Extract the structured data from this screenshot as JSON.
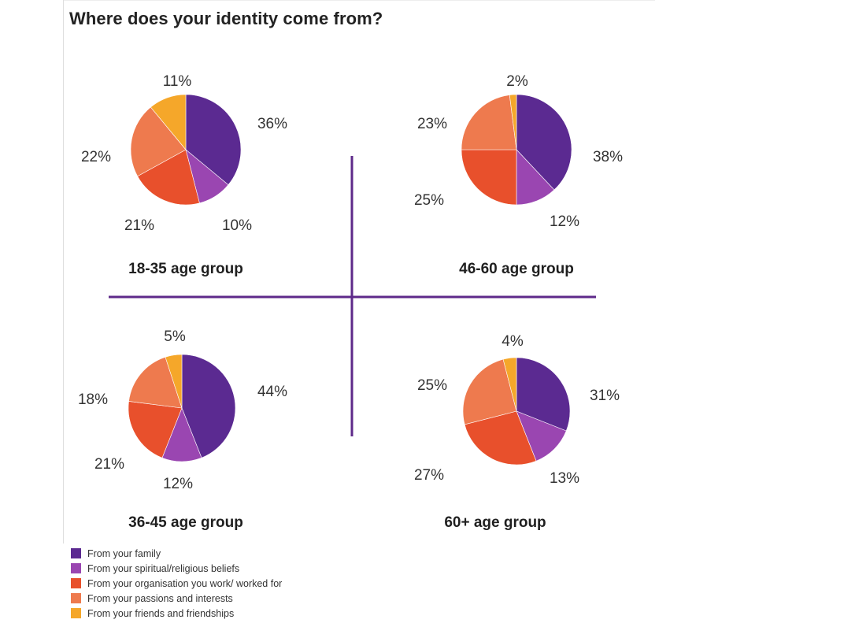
{
  "title": "Where does your identity come from?",
  "colors": {
    "family": "#5b2a91",
    "spiritual": "#9a46b1",
    "organisation": "#e8502c",
    "passions": "#ee7a4e",
    "friends": "#f5a72a",
    "divider": "#5e2a8a"
  },
  "legend": [
    {
      "key": "family",
      "label": "From your family"
    },
    {
      "key": "spiritual",
      "label": "From your spiritual/religious beliefs"
    },
    {
      "key": "organisation",
      "label": "From your organisation you work/ worked for"
    },
    {
      "key": "passions",
      "label": "From your passions and interests"
    },
    {
      "key": "friends",
      "label": "From your friends and friendships"
    }
  ],
  "chart_data": [
    {
      "type": "pie",
      "title": "18-35 age group",
      "categories": [
        "From your family",
        "From your spiritual/religious beliefs",
        "From your organisation you work/ worked for",
        "From your passions and interests",
        "From your friends and friendships"
      ],
      "values": [
        36,
        10,
        21,
        22,
        11
      ],
      "labels": [
        "36%",
        "10%",
        "21%",
        "22%",
        "11%"
      ]
    },
    {
      "type": "pie",
      "title": "46-60 age group",
      "categories": [
        "From your family",
        "From your spiritual/religious beliefs",
        "From your organisation you work/ worked for",
        "From your passions and interests",
        "From your friends and friendships"
      ],
      "values": [
        38,
        12,
        25,
        23,
        2
      ],
      "labels": [
        "38%",
        "12%",
        "25%",
        "23%",
        "2%"
      ]
    },
    {
      "type": "pie",
      "title": "36-45 age group",
      "categories": [
        "From your family",
        "From your spiritual/religious beliefs",
        "From your organisation you work/ worked for",
        "From your passions and interests",
        "From your friends and friendships"
      ],
      "values": [
        44,
        12,
        21,
        18,
        5
      ],
      "labels": [
        "44%",
        "12%",
        "21%",
        "18%",
        "5%"
      ]
    },
    {
      "type": "pie",
      "title": "60+ age group",
      "categories": [
        "From your family",
        "From your spiritual/religious beliefs",
        "From your organisation you work/ worked for",
        "From your passions and interests",
        "From your friends and friendships"
      ],
      "values": [
        31,
        13,
        27,
        25,
        4
      ],
      "labels": [
        "31%",
        "13%",
        "27%",
        "25%",
        "4%"
      ]
    }
  ]
}
